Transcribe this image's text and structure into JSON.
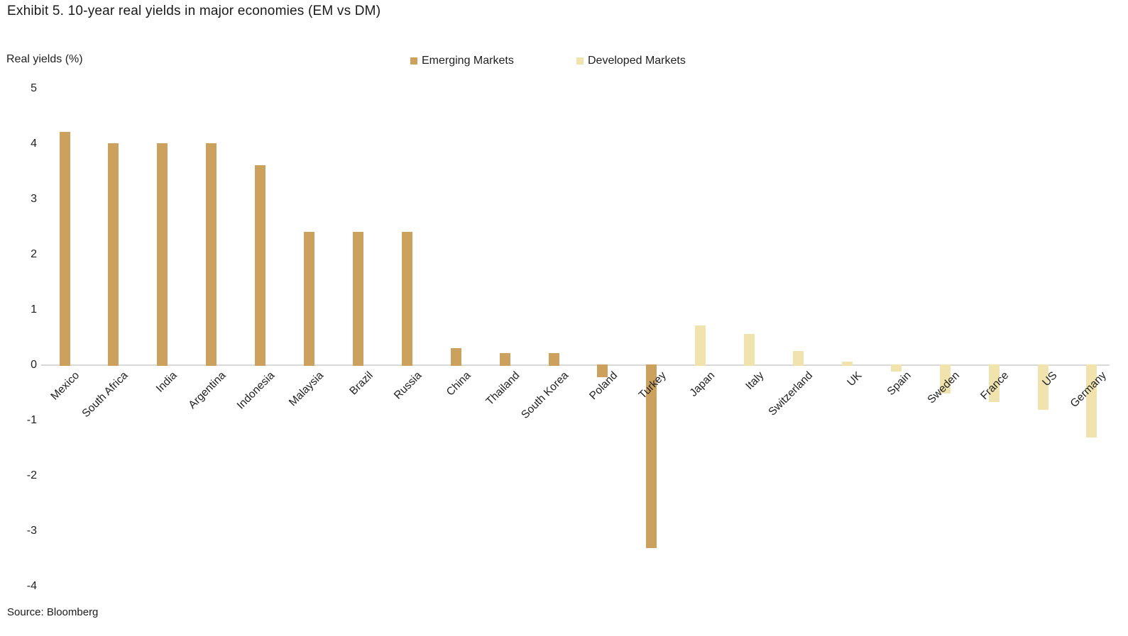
{
  "title": "Exhibit 5. 10-year real yields in major economies (EM vs DM)",
  "source": "Source: Bloomberg",
  "colors": {
    "emerging_markets": "#CBA15D",
    "developed_markets": "#F0E3AD",
    "axis_line": "#D8D8D8",
    "text": "#1A1A1A"
  },
  "chart_data": {
    "type": "bar",
    "title": "Exhibit 5. 10-year real yields in major economies (EM vs DM)",
    "ylabel": "Real yields (%)",
    "xlabel": "",
    "source": "Source: Bloomberg",
    "ylim": [
      -4,
      5
    ],
    "yticks": [
      5,
      4,
      3,
      2,
      1,
      0,
      -1,
      -2,
      -3,
      -4
    ],
    "grid": false,
    "legend_position": "top",
    "legend": [
      {
        "label": "Emerging Markets",
        "color": "#CBA15D"
      },
      {
        "label": "Developed Markets",
        "color": "#F0E3AD"
      }
    ],
    "bars": [
      {
        "category": "Mexico",
        "series": "Emerging Markets",
        "value": 4.2
      },
      {
        "category": "South Africa",
        "series": "Emerging Markets",
        "value": 4.0
      },
      {
        "category": "India",
        "series": "Emerging Markets",
        "value": 4.0
      },
      {
        "category": "Argentina",
        "series": "Emerging Markets",
        "value": 4.0
      },
      {
        "category": "Indonesia",
        "series": "Emerging Markets",
        "value": 3.6
      },
      {
        "category": "Malaysia",
        "series": "Emerging Markets",
        "value": 2.4
      },
      {
        "category": "Brazil",
        "series": "Emerging Markets",
        "value": 2.4
      },
      {
        "category": "Russia",
        "series": "Emerging Markets",
        "value": 2.4
      },
      {
        "category": "China",
        "series": "Emerging Markets",
        "value": 0.3
      },
      {
        "category": "Thailand",
        "series": "Emerging Markets",
        "value": 0.2
      },
      {
        "category": "South Korea",
        "series": "Emerging Markets",
        "value": 0.2
      },
      {
        "category": "Poland",
        "series": "Emerging Markets",
        "value": -0.2
      },
      {
        "category": "Turkey",
        "series": "Emerging Markets",
        "value": -3.3
      },
      {
        "category": "Japan",
        "series": "Developed Markets",
        "value": 0.7
      },
      {
        "category": "Italy",
        "series": "Developed Markets",
        "value": 0.55
      },
      {
        "category": "Switzerland",
        "series": "Developed Markets",
        "value": 0.25
      },
      {
        "category": "UK",
        "series": "Developed Markets",
        "value": 0.05
      },
      {
        "category": "Spain",
        "series": "Developed Markets",
        "value": -0.1
      },
      {
        "category": "Sweden",
        "series": "Developed Markets",
        "value": -0.5
      },
      {
        "category": "France",
        "series": "Developed Markets",
        "value": -0.65
      },
      {
        "category": "US",
        "series": "Developed Markets",
        "value": -0.8
      },
      {
        "category": "Germany",
        "series": "Developed Markets",
        "value": -1.3
      }
    ]
  }
}
